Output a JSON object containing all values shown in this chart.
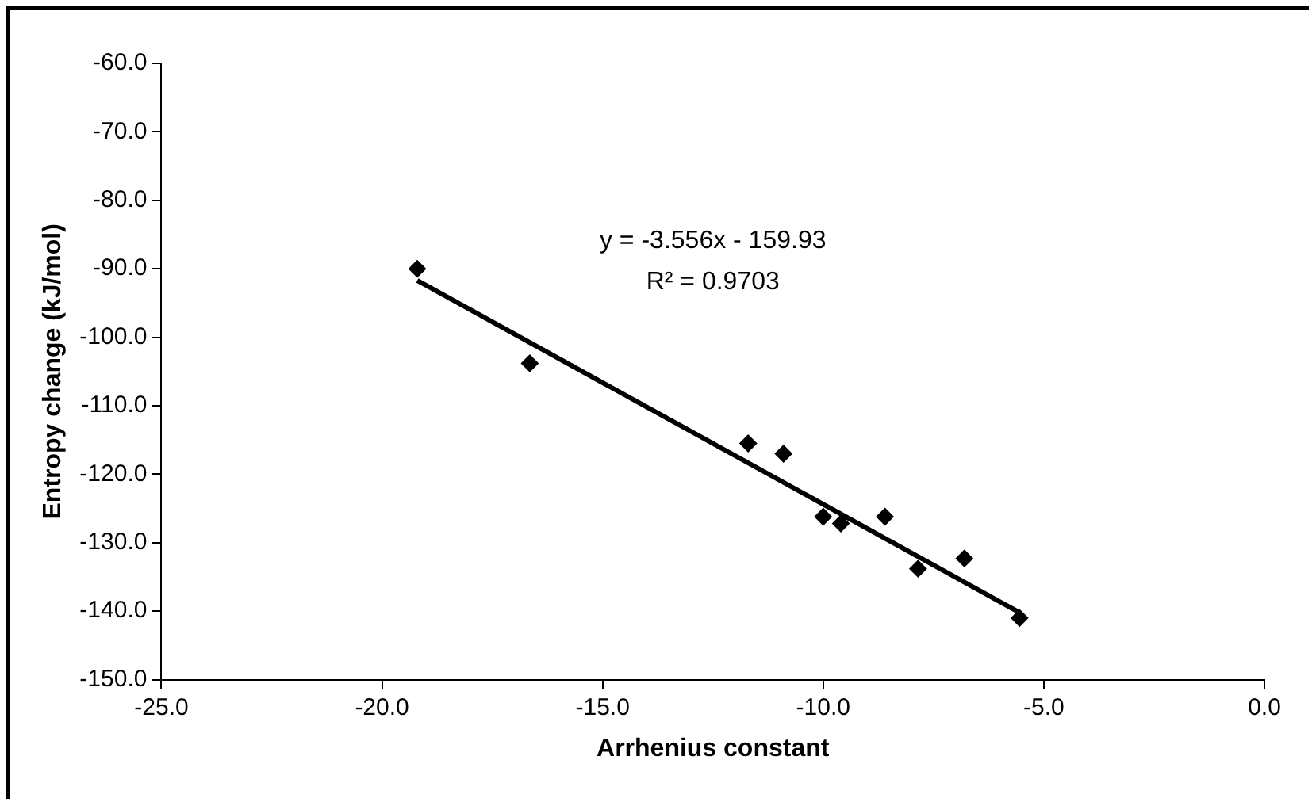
{
  "chart_data": {
    "type": "scatter",
    "xlabel": "Arrhenius constant",
    "ylabel": "Entropy change (kJ/mol)",
    "series": [
      {
        "color": "#000000",
        "marker": "diamond",
        "x": [
          -19.2,
          -16.65,
          -11.7,
          -10.9,
          -10.0,
          -9.6,
          -8.6,
          -7.85,
          -6.8,
          -5.55
        ],
        "values": [
          -90,
          -103.8,
          -115.5,
          -117,
          -126.2,
          -127.2,
          -126.2,
          -133.8,
          -132.3,
          -141
        ]
      },
      {
        "type": "line",
        "color": "#000000",
        "marker": "none",
        "line_style": "solid",
        "x": [
          -19.2,
          -5.55
        ],
        "values": [
          -91.7,
          -140.2
        ]
      }
    ],
    "annotations": [
      "y = -3.556x - 159.93",
      "R² = 0.9703"
    ],
    "xlim": [
      -25,
      0
    ],
    "xticks": [
      {
        "value": -25,
        "label": "-25.0"
      },
      {
        "value": -20,
        "label": "-20.0"
      },
      {
        "value": -15,
        "label": "-15.0"
      },
      {
        "value": -10,
        "label": "-10.0"
      },
      {
        "value": -5,
        "label": "-5.0"
      },
      {
        "value": 0,
        "label": "0.0"
      }
    ],
    "ylim": [
      -150,
      -60
    ],
    "yticks": [
      {
        "value": -150,
        "label": "-150.0"
      },
      {
        "value": -140,
        "label": "-140.0"
      },
      {
        "value": -130,
        "label": "-130.0"
      },
      {
        "value": -120,
        "label": "-120.0"
      },
      {
        "value": -110,
        "label": "-110.0"
      },
      {
        "value": -100,
        "label": "-100.0"
      },
      {
        "value": -90,
        "label": "-90.0"
      },
      {
        "value": -80,
        "label": "-80.0"
      },
      {
        "value": -70,
        "label": "-70.0"
      },
      {
        "value": -60,
        "label": "-60.0"
      }
    ],
    "grid": false,
    "legend": false
  }
}
